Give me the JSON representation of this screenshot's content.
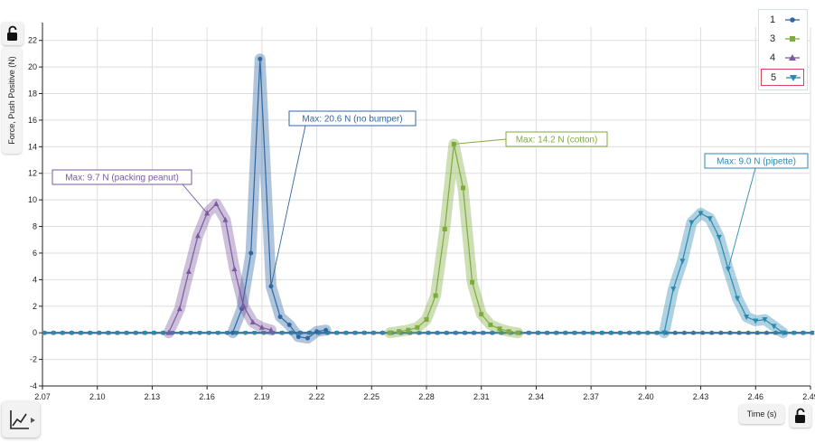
{
  "chart_data": {
    "type": "line",
    "xlabel": "Time (s)",
    "ylabel": "Force, Push Positive (N)",
    "xlim": [
      2.07,
      2.5
    ],
    "ylim": [
      -4,
      23
    ],
    "x_ticks": [
      "2.07",
      "2.10",
      "2.13",
      "2.16",
      "2.19",
      "2.22",
      "2.25",
      "2.28",
      "2.31",
      "2.34",
      "2.37",
      "2.40",
      "2.43",
      "2.46",
      "2.49"
    ],
    "y_ticks": [
      "-4",
      "-2",
      "0",
      "2",
      "4",
      "6",
      "8",
      "10",
      "12",
      "14",
      "16",
      "18",
      "20",
      "22"
    ],
    "grid": true,
    "legend_position": "top-right",
    "series": [
      {
        "name": "1",
        "color": "#2f67a3",
        "marker": "circle",
        "highlight": true,
        "x": [
          2.174,
          2.179,
          2.184,
          2.189,
          2.195,
          2.2,
          2.205,
          2.21,
          2.215,
          2.22,
          2.225
        ],
        "y": [
          0.0,
          1.8,
          6.0,
          20.6,
          3.5,
          1.2,
          0.6,
          -0.3,
          -0.4,
          0.1,
          0.2
        ]
      },
      {
        "name": "3",
        "color": "#7faa3e",
        "marker": "square",
        "highlight": true,
        "x": [
          2.26,
          2.265,
          2.27,
          2.275,
          2.28,
          2.285,
          2.29,
          2.295,
          2.3,
          2.305,
          2.31,
          2.315,
          2.32,
          2.325,
          2.33
        ],
        "y": [
          0.0,
          0.1,
          0.2,
          0.4,
          1.0,
          2.8,
          7.8,
          14.2,
          10.9,
          3.8,
          1.4,
          0.6,
          0.3,
          0.1,
          0.0
        ]
      },
      {
        "name": "4",
        "color": "#7b5a9e",
        "marker": "triangle-up",
        "highlight": true,
        "x": [
          2.139,
          2.145,
          2.15,
          2.155,
          2.16,
          2.165,
          2.17,
          2.175,
          2.18,
          2.185,
          2.19,
          2.195
        ],
        "y": [
          0.0,
          1.8,
          4.6,
          7.3,
          9.0,
          9.7,
          8.5,
          4.8,
          2.0,
          0.8,
          0.4,
          0.2
        ]
      },
      {
        "name": "5",
        "color": "#2b8ab0",
        "marker": "triangle-down",
        "highlight": true,
        "x": [
          2.41,
          2.415,
          2.42,
          2.425,
          2.43,
          2.435,
          2.44,
          2.445,
          2.45,
          2.455,
          2.46,
          2.465,
          2.47,
          2.475
        ],
        "y": [
          0.0,
          3.3,
          5.4,
          8.3,
          9.0,
          8.6,
          7.2,
          4.8,
          2.6,
          1.2,
          0.9,
          1.0,
          0.5,
          0.0
        ]
      }
    ],
    "annotations": [
      {
        "text": "Max:  20.6 N (no bumper)",
        "series": "1",
        "x": 2.195,
        "y": 3.5,
        "color": "#2f67a3"
      },
      {
        "text": "Max: 14.2 N (cotton)",
        "series": "3",
        "x": 2.295,
        "y": 14.2,
        "color": "#7faa3e"
      },
      {
        "text": "Max: 9.7 N (packing peanut)",
        "series": "4",
        "x": 2.16,
        "y": 9.0,
        "color": "#7b5a9e"
      },
      {
        "text": "Max:  9.0 N (pipette)",
        "series": "5",
        "x": 2.445,
        "y": 4.8,
        "color": "#2b8ab0"
      }
    ]
  },
  "legend": {
    "items": [
      {
        "label": "1",
        "color": "#2f67a3",
        "marker": "circle",
        "selected": false
      },
      {
        "label": "3",
        "color": "#7faa3e",
        "marker": "square",
        "selected": false
      },
      {
        "label": "4",
        "color": "#7b5a9e",
        "marker": "triangle-up",
        "selected": false
      },
      {
        "label": "5",
        "color": "#2b8ab0",
        "marker": "triangle-down",
        "selected": true
      }
    ]
  },
  "controls": {
    "time_button_label": "Time (s)",
    "ylabel_button_label": "Force, Push Positive (N)",
    "graph_tool_icon": "line-graph-icon",
    "lock_icon": "unlock-icon"
  }
}
